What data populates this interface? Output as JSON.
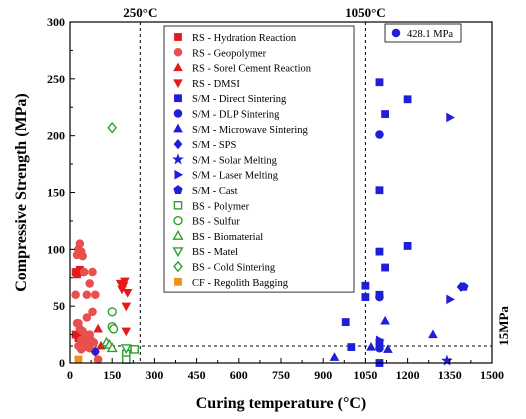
{
  "chart_data": {
    "type": "scatter",
    "xlabel": "Curing temperature (°C)",
    "ylabel": "Compressive Strength (MPa)",
    "xlim": [
      0,
      1500
    ],
    "ylim": [
      0,
      300
    ],
    "xticks": [
      0,
      150,
      300,
      450,
      600,
      750,
      900,
      1050,
      1200,
      1350,
      1500
    ],
    "yticks": [
      0,
      50,
      100,
      150,
      200,
      250,
      300
    ],
    "grid": false,
    "legend_position": "upper-center",
    "reference_lines": [
      {
        "orientation": "vertical",
        "value": 250,
        "label": "250°C"
      },
      {
        "orientation": "vertical",
        "value": 1050,
        "label": "1050°C"
      },
      {
        "orientation": "horizontal",
        "value": 15,
        "label": "15MPa"
      }
    ],
    "annotations": [
      {
        "label": "428.1 MPa",
        "color": "#1f1fd6",
        "shape": "circle"
      }
    ],
    "series": [
      {
        "name": "RS - Hydration Reaction",
        "color": "#e31a1c",
        "shape": "square",
        "filled": true,
        "x": [
          20,
          25,
          30,
          35,
          40,
          45,
          20,
          30
        ],
        "y": [
          80,
          78,
          80,
          82,
          20,
          18,
          25,
          22
        ]
      },
      {
        "name": "RS - Geopolymer",
        "color": "#e8504e",
        "shape": "circle",
        "filled": true,
        "x": [
          25,
          30,
          35,
          40,
          45,
          50,
          60,
          70,
          80,
          25,
          35,
          45,
          55,
          65,
          75,
          85,
          30,
          40,
          50,
          60,
          70,
          90,
          20,
          30,
          40,
          50,
          60,
          70,
          80,
          90,
          100
        ],
        "y": [
          95,
          100,
          105,
          98,
          94,
          80,
          60,
          70,
          45,
          35,
          30,
          28,
          25,
          22,
          20,
          18,
          15,
          12,
          14,
          16,
          13,
          10,
          60,
          35,
          20,
          18,
          40,
          25,
          80,
          60,
          3
        ]
      },
      {
        "name": "RS - Sorel Cement Reaction",
        "color": "#e31a1c",
        "shape": "triangle-up",
        "filled": true,
        "x": [
          100,
          110
        ],
        "y": [
          30,
          15
        ]
      },
      {
        "name": "RS - DMSI",
        "color": "#e31a1c",
        "shape": "triangle-down",
        "filled": true,
        "x": [
          180,
          185,
          190,
          195,
          200,
          200,
          205
        ],
        "y": [
          70,
          65,
          68,
          72,
          50,
          28,
          62
        ]
      },
      {
        "name": "S/M - Direct Sintering",
        "color": "#1f1fd6",
        "shape": "square",
        "filled": true,
        "x": [
          980,
          1000,
          1050,
          1050,
          1100,
          1100,
          1100,
          1100,
          1100,
          1120,
          1120,
          1200,
          1200,
          1100
        ],
        "y": [
          36,
          14,
          68,
          58,
          247,
          152,
          98,
          60,
          18,
          219,
          84,
          232,
          103,
          0
        ]
      },
      {
        "name": "S/M - DLP Sintering",
        "color": "#1f1fd6",
        "shape": "circle",
        "filled": true,
        "x": [
          1100,
          1100,
          1100
        ],
        "y": [
          201,
          58,
          13
        ]
      },
      {
        "name": "S/M - Microwave Sintering",
        "color": "#1f1fd6",
        "shape": "triangle-up",
        "filled": true,
        "x": [
          940,
          1070,
          1120,
          1130,
          1290
        ],
        "y": [
          5,
          14,
          37,
          12,
          25
        ]
      },
      {
        "name": "S/M - SPS",
        "color": "#1f1fd6",
        "shape": "diamond",
        "filled": true,
        "x": [
          90,
          1390
        ],
        "y": [
          10,
          67
        ]
      },
      {
        "name": "S/M - Solar Melting",
        "color": "#1f1fd6",
        "shape": "star",
        "filled": true,
        "x": [
          1340
        ],
        "y": [
          2
        ]
      },
      {
        "name": "S/M - Laser Melting",
        "color": "#1f1fd6",
        "shape": "triangle-right",
        "filled": true,
        "x": [
          1350,
          1350,
          1100
        ],
        "y": [
          216,
          56,
          20
        ]
      },
      {
        "name": "S/M - Cast",
        "color": "#1f1fd6",
        "shape": "pentagon",
        "filled": true,
        "x": [
          1400
        ],
        "y": [
          67
        ]
      },
      {
        "name": "BS - Polymer",
        "color": "#2ca02c",
        "shape": "square",
        "filled": false,
        "x": [
          200,
          200,
          230
        ],
        "y": [
          8,
          3,
          12
        ]
      },
      {
        "name": "BS - Sulfur",
        "color": "#2ca02c",
        "shape": "circle",
        "filled": false,
        "x": [
          150,
          150,
          155
        ],
        "y": [
          45,
          32,
          30
        ]
      },
      {
        "name": "BS - Biomaterial",
        "color": "#2ca02c",
        "shape": "triangle-up",
        "filled": false,
        "x": [
          130,
          140,
          150
        ],
        "y": [
          18,
          16,
          13
        ]
      },
      {
        "name": "BS - Matel",
        "color": "#2ca02c",
        "shape": "triangle-down",
        "filled": false,
        "x": [
          200
        ],
        "y": [
          13
        ]
      },
      {
        "name": "BS - Cold Sintering",
        "color": "#2ca02c",
        "shape": "diamond",
        "filled": false,
        "x": [
          150
        ],
        "y": [
          207
        ]
      },
      {
        "name": "CF - Regolith Bagging",
        "color": "#f28e1c",
        "shape": "square",
        "filled": true,
        "x": [
          30
        ],
        "y": [
          3
        ]
      }
    ]
  }
}
